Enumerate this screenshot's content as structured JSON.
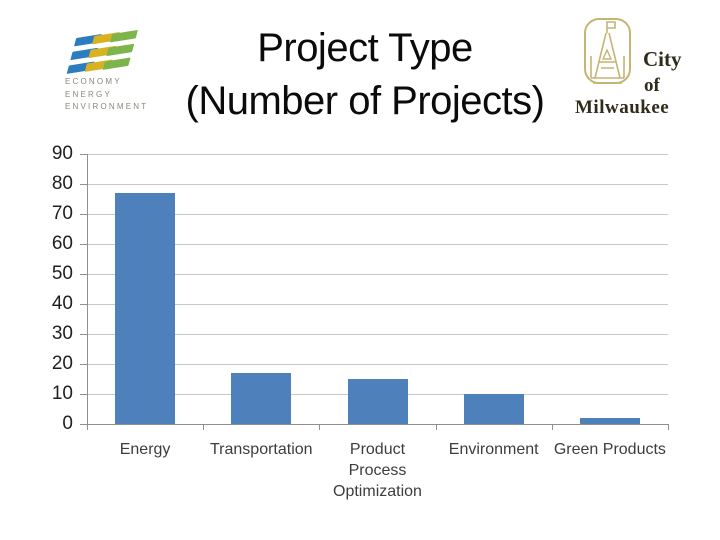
{
  "slide": {
    "title": [
      "Project Type",
      "(Number of Projects)"
    ]
  },
  "e3_logo": {
    "text_lines": [
      "ECONOMY",
      "ENERGY",
      "ENVIRONMENT"
    ],
    "stripe_colors": [
      "#2c7cc0",
      "#d8b223",
      "#7db54a"
    ],
    "text_color": "#8b877e"
  },
  "milwaukee_logo": {
    "text_lines": [
      "City",
      "of",
      "Milwaukee"
    ],
    "emblem_color": "#c6b474",
    "text_color": "#2f2c1b"
  },
  "chart_data": {
    "type": "bar",
    "title": "Project Type (Number of Projects)",
    "categories": [
      "Energy",
      "Transportation",
      "Product Process Optimization",
      "Environment",
      "Green Products"
    ],
    "values": [
      77,
      17,
      15,
      10,
      2
    ],
    "xlabel": "",
    "ylabel": "",
    "ylim": [
      0,
      90
    ],
    "yticks": [
      0,
      10,
      20,
      30,
      40,
      50,
      60,
      70,
      80,
      90
    ],
    "grid": true,
    "legend": false,
    "bar_color": "#4e81bc",
    "gridline_color": "#c8c8c8",
    "axis_color": "#8f8f8f",
    "tick_label_color": "#1f1f1f",
    "category_label_color": "#3d3d3d"
  }
}
